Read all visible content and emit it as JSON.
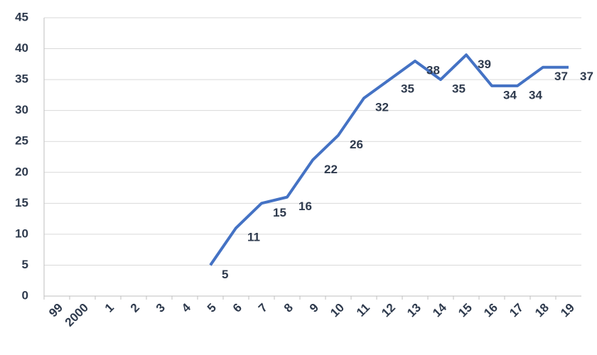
{
  "chart_data": {
    "type": "line",
    "categories": [
      "99",
      "2000",
      "1",
      "2",
      "3",
      "4",
      "5",
      "6",
      "7",
      "8",
      "9",
      "10",
      "11",
      "12",
      "13",
      "14",
      "15",
      "16",
      "17",
      "18",
      "19"
    ],
    "series": [
      {
        "color": "#4472c4",
        "values": [
          null,
          null,
          null,
          null,
          null,
          null,
          5,
          11,
          15,
          16,
          22,
          26,
          32,
          35,
          38,
          35,
          39,
          34,
          34,
          37,
          37
        ]
      }
    ],
    "ylim": [
      0,
      45
    ],
    "yticks": [
      0,
      5,
      10,
      15,
      20,
      25,
      30,
      35,
      40,
      45
    ],
    "grid": true
  }
}
